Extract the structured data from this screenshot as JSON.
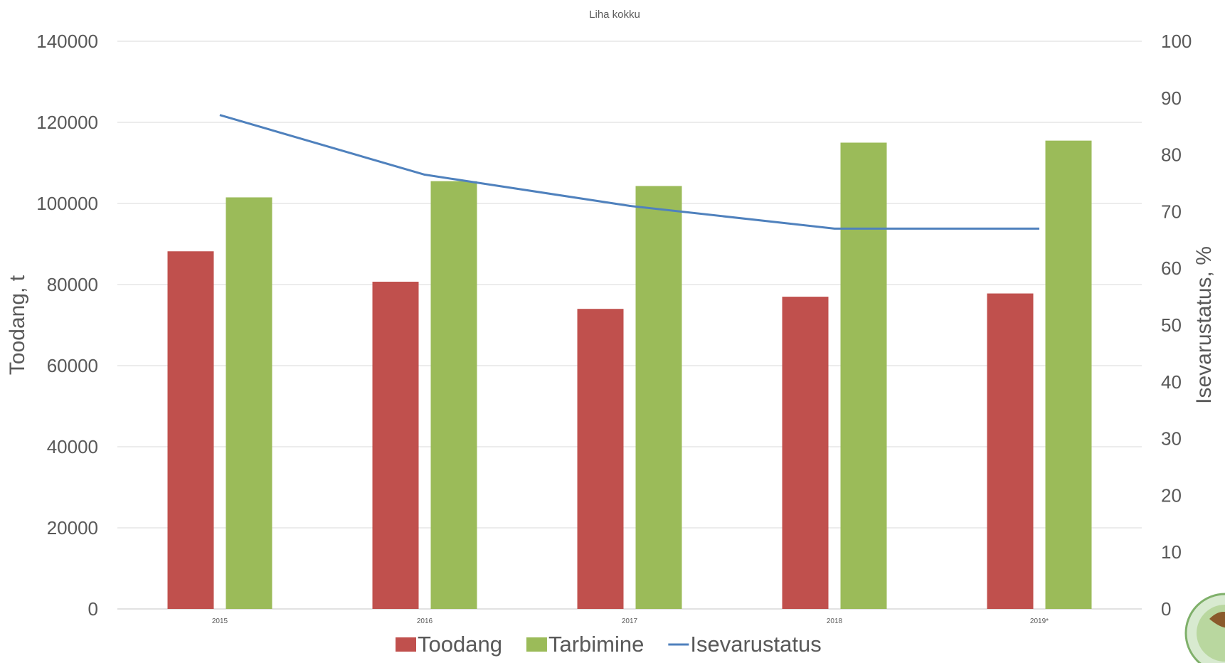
{
  "chart_data": {
    "type": "bar",
    "title": "Liha kokku",
    "categories": [
      "2015",
      "2016",
      "2017",
      "2018",
      "2019*"
    ],
    "series": [
      {
        "name": "Toodang",
        "kind": "bar",
        "axis": "left",
        "color": "#c0504d",
        "values": [
          88200,
          80700,
          74000,
          77000,
          77800
        ]
      },
      {
        "name": "Tarbimine",
        "kind": "bar",
        "axis": "left",
        "color": "#9bbb59",
        "values": [
          101500,
          105500,
          104300,
          115000,
          115500
        ]
      },
      {
        "name": "Isevarustatus",
        "kind": "line",
        "axis": "right",
        "color": "#4f81bd",
        "values": [
          87,
          76.5,
          71,
          67,
          67
        ]
      }
    ],
    "ylabel": "Toodang, t",
    "y2label": "Isevarustatus, %",
    "ylim": [
      0,
      140000
    ],
    "yticks": [
      0,
      20000,
      40000,
      60000,
      80000,
      100000,
      120000,
      140000
    ],
    "y2lim": [
      0,
      100
    ],
    "y2ticks": [
      0,
      10,
      20,
      30,
      40,
      50,
      60,
      70,
      80,
      90,
      100
    ],
    "grid": true,
    "legend": "bottom"
  }
}
